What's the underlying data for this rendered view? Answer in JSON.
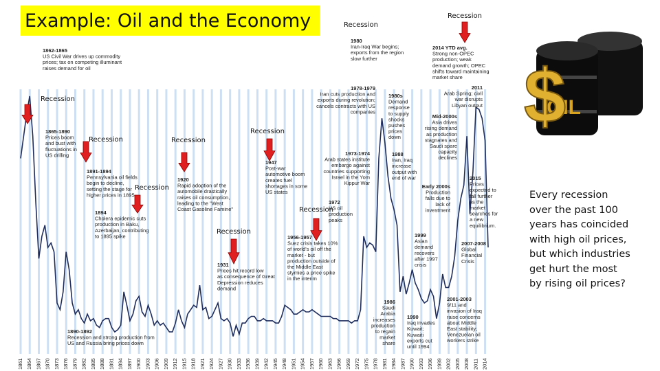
{
  "title": "Example: Oil and the Economy",
  "side_text": "Every recession over the past 100 years has coincided with high oil prices, but which industries get hurt the most by rising oil prices?",
  "image_text": [
    "$",
    "OIL"
  ],
  "chart_data": {
    "type": "line",
    "color": "#1f2d5c",
    "grid": true,
    "xlim": [
      1861,
      2015
    ],
    "ylim": [
      0,
      130
    ],
    "xticks": [
      1861,
      1864,
      1867,
      1870,
      1873,
      1876,
      1879,
      1882,
      1885,
      1888,
      1891,
      1894,
      1897,
      1900,
      1903,
      1906,
      1909,
      1912,
      1915,
      1918,
      1921,
      1924,
      1927,
      1930,
      1933,
      1936,
      1939,
      1942,
      1945,
      1948,
      1951,
      1954,
      1957,
      1960,
      1963,
      1966,
      1969,
      1972,
      1975,
      1978,
      1981,
      1984,
      1987,
      1990,
      1993,
      1996,
      1999,
      2002,
      2005,
      2008,
      2011,
      2014
    ],
    "x": [
      1861,
      1862,
      1863,
      1864,
      1865,
      1866,
      1867,
      1868,
      1869,
      1870,
      1871,
      1872,
      1873,
      1874,
      1875,
      1876,
      1877,
      1878,
      1879,
      1880,
      1881,
      1882,
      1883,
      1884,
      1885,
      1886,
      1887,
      1888,
      1889,
      1890,
      1891,
      1892,
      1893,
      1894,
      1895,
      1896,
      1897,
      1898,
      1899,
      1900,
      1901,
      1902,
      1903,
      1904,
      1905,
      1906,
      1907,
      1908,
      1909,
      1910,
      1911,
      1912,
      1913,
      1914,
      1915,
      1916,
      1917,
      1918,
      1919,
      1920,
      1921,
      1922,
      1923,
      1924,
      1925,
      1926,
      1927,
      1928,
      1929,
      1930,
      1931,
      1932,
      1933,
      1934,
      1935,
      1936,
      1937,
      1938,
      1939,
      1940,
      1941,
      1942,
      1943,
      1944,
      1945,
      1946,
      1947,
      1948,
      1949,
      1950,
      1951,
      1952,
      1953,
      1954,
      1955,
      1956,
      1957,
      1958,
      1959,
      1960,
      1961,
      1962,
      1963,
      1964,
      1965,
      1966,
      1967,
      1968,
      1969,
      1970,
      1971,
      1972,
      1973,
      1974,
      1975,
      1976,
      1977,
      1978,
      1979,
      1980,
      1981,
      1982,
      1983,
      1984,
      1985,
      1986,
      1987,
      1988,
      1989,
      1990,
      1991,
      1992,
      1993,
      1994,
      1995,
      1996,
      1997,
      1998,
      1999,
      2000,
      2001,
      2002,
      2003,
      2004,
      2005,
      2006,
      2007,
      2008,
      2009,
      2010,
      2011,
      2012,
      2013,
      2014,
      2015
    ],
    "values": [
      90,
      100,
      110,
      118,
      100,
      70,
      45,
      55,
      60,
      50,
      52,
      48,
      25,
      22,
      30,
      48,
      40,
      25,
      20,
      22,
      18,
      16,
      20,
      17,
      18,
      15,
      14,
      17,
      18,
      18,
      14,
      12,
      13,
      15,
      30,
      24,
      17,
      20,
      26,
      28,
      21,
      19,
      24,
      20,
      15,
      17,
      15,
      16,
      14,
      12,
      12,
      16,
      22,
      17,
      14,
      20,
      22,
      24,
      23,
      33,
      22,
      23,
      18,
      19,
      22,
      25,
      18,
      17,
      18,
      16,
      10,
      15,
      11,
      16,
      16,
      18,
      19,
      19,
      17,
      17,
      18,
      17,
      17,
      17,
      16,
      16,
      19,
      24,
      23,
      22,
      20,
      20,
      21,
      22,
      21,
      21,
      22,
      21,
      20,
      19,
      19,
      19,
      19,
      18,
      18,
      17,
      17,
      17,
      17,
      16,
      17,
      17,
      22,
      55,
      50,
      52,
      51,
      48,
      90,
      108,
      97,
      82,
      72,
      67,
      60,
      30,
      37,
      29,
      34,
      40,
      34,
      31,
      27,
      25,
      26,
      31,
      28,
      18,
      25,
      38,
      32,
      32,
      37,
      46,
      62,
      72,
      78,
      100,
      65,
      84,
      113,
      112,
      108,
      98,
      50
    ],
    "recession_labels": [
      "Recession",
      "Recession",
      "Recession",
      "Recession",
      "Recession",
      "Recession",
      "Recession",
      "Recession",
      "Recession"
    ],
    "annotations": [
      {
        "heading": "1862-1865",
        "lines": [
          "US Civil War drives up commodity",
          "prices; tax on competing illuminant",
          "raises demand for oil"
        ]
      },
      {
        "heading": "1865-1890",
        "lines": [
          "Prices boom",
          "and bust with",
          "fluctuations in",
          "US drilling"
        ]
      },
      {
        "heading": "1891-1894",
        "lines": [
          "Pennsylvania oil fields",
          "begin to decline,",
          "setting the stage for",
          "higher prices in 1895"
        ]
      },
      {
        "heading": "1894",
        "lines": [
          "Cholera epidemic cuts",
          "production in Baku,",
          "Azerbaijan, contributing",
          "to 1895 spike"
        ]
      },
      {
        "heading": "1890-1892",
        "lines": [
          "Recession and strong production from",
          "US and Russia bring prices down"
        ]
      },
      {
        "heading": "1920",
        "lines": [
          "Rapid adoption of the",
          "automobile drastically",
          "raises oil consumption,",
          "leading to the \"West",
          "Coast Gasoline Famine\""
        ]
      },
      {
        "heading": "1931",
        "lines": [
          "Prices hit record low",
          "as consequence of Great",
          "Depression reduces",
          "demand"
        ]
      },
      {
        "heading": "1947",
        "lines": [
          "Post-war",
          "automotive boom",
          "creates fuel",
          "shortages in some",
          "US states"
        ]
      },
      {
        "heading": "1956-1957",
        "lines": [
          "Suez crisis takes 10%",
          "of world's oil off the",
          "market - but",
          "production outside of",
          "the Middle East",
          "stymies a price spike",
          "in the interim"
        ]
      },
      {
        "heading": "1972",
        "lines": [
          "US oil",
          "production",
          "peaks"
        ]
      },
      {
        "heading": "1973-1974",
        "lines": [
          "Arab states institute",
          "embargo against",
          "countries supporting",
          "Israel in the Yom",
          "Kippur War"
        ]
      },
      {
        "heading": "1978-1979",
        "lines": [
          "Iran cuts production and",
          "exports during revolution;",
          "cancels contracts with US",
          "companies"
        ]
      },
      {
        "heading": "1980",
        "lines": [
          "Iran-Iraq War begins;",
          "exports from the region",
          "slow further"
        ]
      },
      {
        "heading": "1980s",
        "lines": [
          "Demand",
          "response",
          "to supply",
          "shocks",
          "pushes",
          "prices",
          "down"
        ]
      },
      {
        "heading": "1986",
        "lines": [
          "Saudi",
          "Arabia",
          "increases",
          "production",
          "to regain",
          "market",
          "share"
        ]
      },
      {
        "heading": "1988",
        "lines": [
          "Iran, Iraq",
          "increase",
          "output with",
          "end of war"
        ]
      },
      {
        "heading": "1990",
        "lines": [
          "Iraq invades",
          "Kuwait;",
          "Kuwaiti",
          "exports cut",
          "until 1994"
        ]
      },
      {
        "heading": "1999",
        "lines": [
          "Asian",
          "demand",
          "recovers",
          "after 1997",
          "crisis"
        ]
      },
      {
        "heading": "Early 2000s",
        "lines": [
          "Production",
          "falls due to",
          "lack of",
          "investment"
        ]
      },
      {
        "heading": "2001-2003",
        "lines": [
          "9/11 and",
          "invasion of Iraq",
          "raise concerns",
          "about Middle",
          "East stability;",
          "Venezuelan oil",
          "workers strike"
        ]
      },
      {
        "heading": "2007-2008",
        "lines": [
          "Global",
          "Financial",
          "Crisis"
        ]
      },
      {
        "heading": "2015",
        "color": "#e00000",
        "lines": [
          "Prices",
          "expected to",
          "fall further",
          "as the",
          "market",
          "searches for",
          "a new",
          "equilibrium."
        ]
      },
      {
        "heading": "2014 YTD avg.",
        "color": "#e00000",
        "lines": [
          "Strong non-OPEC",
          "production; weak",
          "demand growth; OPEC",
          "shifts toward maintaining",
          "market share"
        ]
      },
      {
        "heading": "2011",
        "lines": [
          "Arab Spring; civil",
          "war disrupts",
          "Libyan output"
        ]
      },
      {
        "heading": "Mid-2000s",
        "lines": [
          "Asia drives",
          "rising demand",
          "as production",
          "stagnates and",
          "Saudi spare",
          "capacity",
          "declines"
        ]
      }
    ]
  }
}
